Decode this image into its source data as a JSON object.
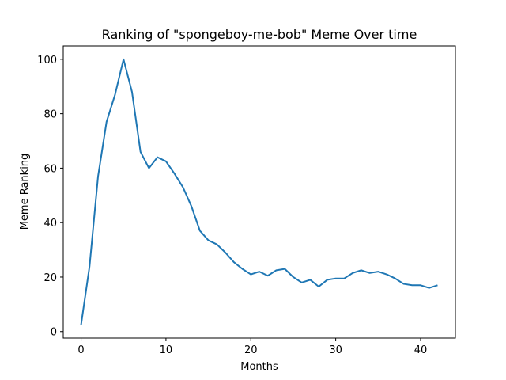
{
  "chart_data": {
    "type": "line",
    "title": "Ranking of \"spongeboy-me-bob\" Meme Over time",
    "xlabel": "Months",
    "ylabel": "Meme Ranking",
    "xlim": [
      -2.1,
      44.1
    ],
    "ylim": [
      -2.4,
      104.9
    ],
    "xticks": [
      0,
      10,
      20,
      30,
      40
    ],
    "yticks": [
      0,
      20,
      40,
      60,
      80,
      100
    ],
    "grid": false,
    "series": [
      {
        "color": "#1f77b4",
        "x": [
          0,
          1,
          2,
          3,
          4,
          5,
          6,
          7,
          8,
          9,
          10,
          11,
          12,
          13,
          14,
          15,
          16,
          17,
          18,
          19,
          20,
          21,
          22,
          23,
          24,
          25,
          26,
          27,
          28,
          29,
          30,
          31,
          32,
          33,
          34,
          35,
          36,
          37,
          38,
          39,
          40,
          41,
          42
        ],
        "values": [
          2.5,
          24,
          57,
          77,
          87,
          100,
          88,
          66,
          60,
          64,
          62.5,
          58,
          53,
          46,
          37,
          33.5,
          32,
          29,
          25.5,
          23,
          21,
          22,
          20.5,
          22.5,
          23,
          20,
          18,
          19,
          16.5,
          19,
          19.5,
          19.5,
          21.5,
          22.5,
          21.5,
          22,
          21,
          19.5,
          17.5,
          17,
          17,
          16,
          17
        ]
      }
    ]
  }
}
